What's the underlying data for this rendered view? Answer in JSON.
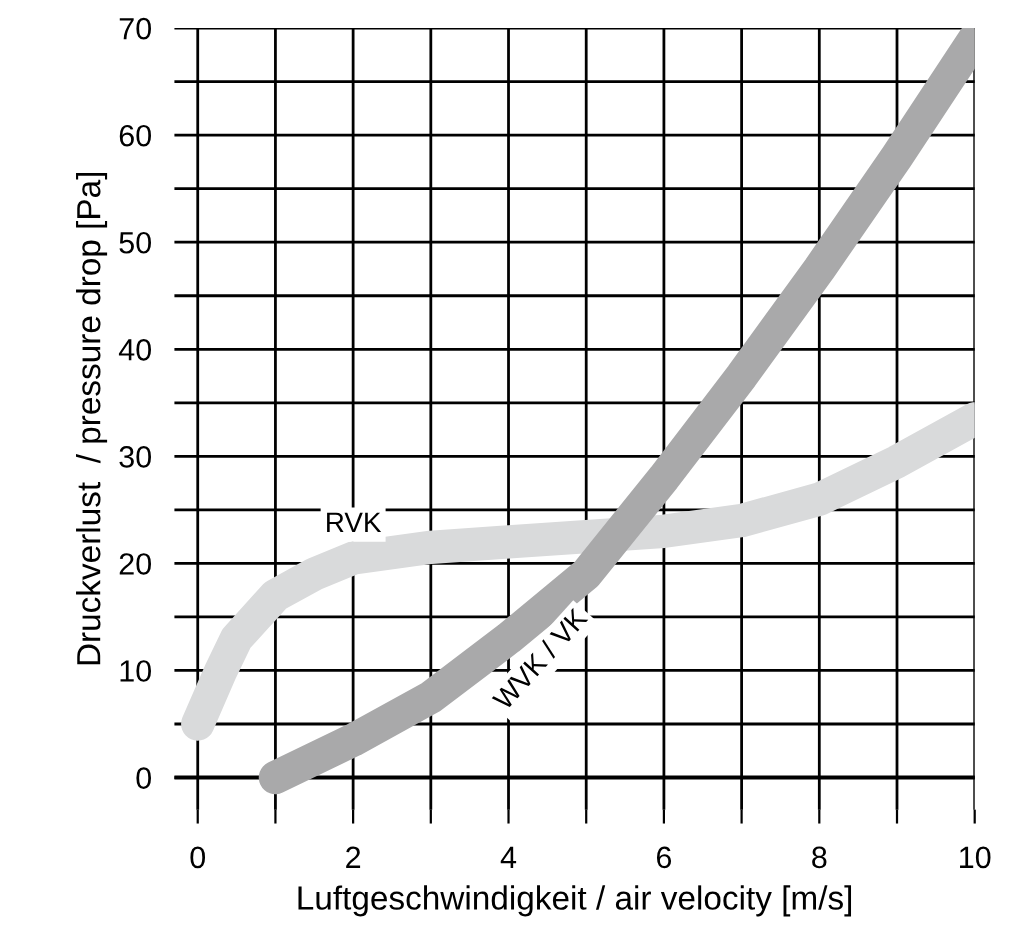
{
  "chart_data": {
    "type": "line",
    "xlabel": "Luftgeschwindigkeit / air velocity [m/s]",
    "ylabel": "Druckverlust  / pressure drop [Pa]",
    "series": [
      {
        "name": "RVK",
        "color": "#d9dadb",
        "x": [
          0,
          0.3,
          0.5,
          1,
          1.5,
          2,
          3,
          4,
          5,
          6,
          7,
          8,
          9,
          10
        ],
        "values": [
          5,
          10,
          13,
          17,
          19,
          20.5,
          21.5,
          22,
          22.5,
          23,
          24,
          26,
          29.5,
          33.5
        ]
      },
      {
        "name": "WVK / VK",
        "color": "#a9a9aa",
        "x": [
          1,
          2,
          3,
          4,
          5,
          6,
          7,
          8,
          9,
          10
        ],
        "values": [
          0,
          3.5,
          7.5,
          13,
          19,
          28,
          37.5,
          47.5,
          58,
          69
        ]
      }
    ],
    "xlim": [
      -0.3,
      10
    ],
    "ylim": [
      -3,
      70
    ],
    "xticks": [
      0,
      {
        "value": 1,
        "label": null
      },
      2,
      {
        "value": 3,
        "label": null
      },
      4,
      {
        "value": 5,
        "label": null
      },
      6,
      {
        "value": 7,
        "label": null
      },
      8,
      {
        "value": 9,
        "label": null
      },
      10
    ],
    "yticks": [
      0,
      {
        "value": 5,
        "label": null
      },
      10,
      {
        "value": 15,
        "label": null
      },
      20,
      {
        "value": 25,
        "label": null
      },
      30,
      {
        "value": 35,
        "label": null
      },
      40,
      {
        "value": 45,
        "label": null
      },
      50,
      {
        "value": 55,
        "label": null
      },
      60,
      {
        "value": 65,
        "label": null
      },
      70
    ],
    "grid": true
  }
}
